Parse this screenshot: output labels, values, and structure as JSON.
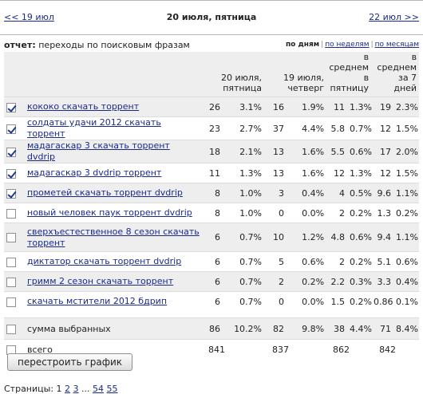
{
  "nav": {
    "prev": "<< 19 июл",
    "current": "20 июля, пятница",
    "next": "22 июл >>"
  },
  "report": {
    "label_bold": "отчет:",
    "label_rest": " переходы по поисковым фразам",
    "views": [
      "по дням",
      "по неделям",
      "по месяцам"
    ]
  },
  "headers": {
    "today": "20 июля,\nпятница",
    "yesterday": "19 июля,\nчетверг",
    "avg_fri": "в\nсреднем\nв пятницу",
    "avg_7": "в\nсреднем\nза 7 дней"
  },
  "rows": [
    {
      "checked": true,
      "phrase": "кококо скачать торрент",
      "c1": "26",
      "p1": "3.1%",
      "c2": "16",
      "p2": "1.9%",
      "c3": "11",
      "p3": "1.3%",
      "c4": "19",
      "p4": "2.3%"
    },
    {
      "checked": true,
      "phrase": "солдаты удачи 2012 скачать торрент",
      "c1": "23",
      "p1": "2.7%",
      "c2": "37",
      "p2": "4.4%",
      "c3": "5.8",
      "p3": "0.7%",
      "c4": "12",
      "p4": "1.5%"
    },
    {
      "checked": true,
      "phrase": "мадагаскар 3 скачать торрент dvdrip",
      "c1": "18",
      "p1": "2.1%",
      "c2": "13",
      "p2": "1.6%",
      "c3": "5.5",
      "p3": "0.6%",
      "c4": "17",
      "p4": "2.0%"
    },
    {
      "checked": true,
      "phrase": "мадагаскар 3 dvdrip торрент",
      "c1": "11",
      "p1": "1.3%",
      "c2": "13",
      "p2": "1.6%",
      "c3": "12",
      "p3": "1.3%",
      "c4": "12",
      "p4": "1.5%"
    },
    {
      "checked": true,
      "phrase": "прометей скачать торрент dvdrip",
      "c1": "8",
      "p1": "1.0%",
      "c2": "3",
      "p2": "0.4%",
      "c3": "4",
      "p3": "0.5%",
      "c4": "9.6",
      "p4": "1.1%"
    },
    {
      "checked": false,
      "phrase": "новый человек паук торрент dvdrip",
      "c1": "8",
      "p1": "1.0%",
      "c2": "0",
      "p2": "0.0%",
      "c3": "2",
      "p3": "0.2%",
      "c4": "1.3",
      "p4": "0.2%"
    },
    {
      "checked": false,
      "phrase": "сверхъестественное 8 сезон скачать торрент",
      "c1": "6",
      "p1": "0.7%",
      "c2": "10",
      "p2": "1.2%",
      "c3": "4.8",
      "p3": "0.6%",
      "c4": "9.4",
      "p4": "1.1%"
    },
    {
      "checked": false,
      "phrase": "диктатор скачать торрент dvdrip",
      "c1": "6",
      "p1": "0.7%",
      "c2": "5",
      "p2": "0.6%",
      "c3": "2",
      "p3": "0.2%",
      "c4": "5.1",
      "p4": "0.6%"
    },
    {
      "checked": false,
      "phrase": "гримм 2 сезон скачать торрент",
      "c1": "6",
      "p1": "0.7%",
      "c2": "2",
      "p2": "0.2%",
      "c3": "2.2",
      "p3": "0.3%",
      "c4": "3.3",
      "p4": "0.4%"
    },
    {
      "checked": false,
      "phrase": "скачать мстители 2012 бдрип",
      "c1": "6",
      "p1": "0.7%",
      "c2": "0",
      "p2": "0.0%",
      "c3": "1.5",
      "p3": "0.2%",
      "c4": "0.86",
      "p4": "0.1%"
    }
  ],
  "sum": {
    "label": "сумма выбранных",
    "c1": "86",
    "p1": "10.2%",
    "c2": "82",
    "p2": "9.8%",
    "c3": "38",
    "p3": "4.4%",
    "c4": "71",
    "p4": "8.4%"
  },
  "total": {
    "label": "всего",
    "c1": "841",
    "c2": "837",
    "c3": "862",
    "c4": "842"
  },
  "button": "перестроить график",
  "pager": {
    "label": "Страницы:",
    "current": "1",
    "pages": [
      "2",
      "3"
    ],
    "ellipsis": "...",
    "tail": [
      "54",
      "55"
    ]
  }
}
